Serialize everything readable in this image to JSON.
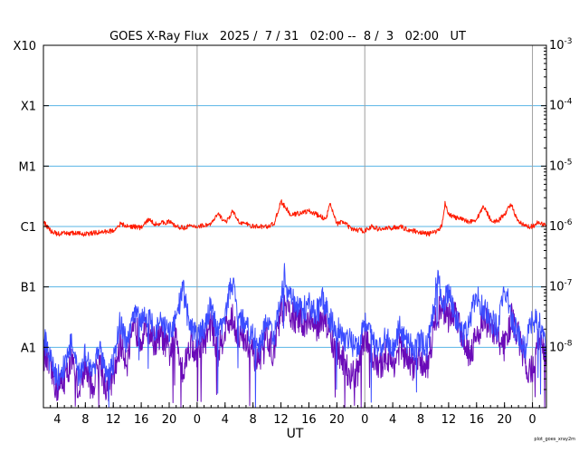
{
  "chart_data": {
    "type": "line",
    "title": "GOES X-Ray Flux   2025 /  7 / 31   02:00 --  8 /  3   02:00   UT",
    "xlabel": "UT",
    "footnote": "plot_goes_xray2m",
    "x_range_hours": [
      0,
      72
    ],
    "x_tick_labels": [
      "4",
      "8",
      "12",
      "16",
      "20",
      "0",
      "4",
      "8",
      "12",
      "16",
      "20",
      "0",
      "4",
      "8",
      "12",
      "16",
      "20",
      "0"
    ],
    "x_tick_hours": [
      2,
      6,
      10,
      14,
      18,
      22,
      26,
      30,
      34,
      38,
      42,
      46,
      50,
      54,
      58,
      62,
      66,
      70
    ],
    "day_boundaries_hours": [
      22,
      46,
      70
    ],
    "y_scale": "log",
    "y_range": [
      1e-09,
      0.001
    ],
    "y_left_labels": [
      {
        "text": "X10",
        "value": 0.001
      },
      {
        "text": "X1",
        "value": 0.0001
      },
      {
        "text": "M1",
        "value": 1e-05
      },
      {
        "text": "C1",
        "value": 1e-06
      },
      {
        "text": "B1",
        "value": 1e-07
      },
      {
        "text": "A1",
        "value": 1e-08
      }
    ],
    "y_right_labels": [
      {
        "base": "10",
        "exp": "-3",
        "value": 0.001
      },
      {
        "base": "10",
        "exp": "-4",
        "value": 0.0001
      },
      {
        "base": "10",
        "exp": "-5",
        "value": 1e-05
      },
      {
        "base": "10",
        "exp": "-6",
        "value": 1e-06
      },
      {
        "base": "10",
        "exp": "-7",
        "value": 1e-07
      },
      {
        "base": "10",
        "exp": "-8",
        "value": 1e-08
      }
    ],
    "gridlines_at": [
      0.0001,
      1e-05,
      1e-06,
      1e-07,
      1e-08
    ],
    "colors": {
      "grid": "#5ab4e6",
      "day_line": "#a0a0a0",
      "long_channel": "#ff1a00",
      "short_channel_a": "#3b4cff",
      "short_channel_b": "#6a0ab8"
    },
    "series": [
      {
        "key": "long",
        "x": [
          0,
          1,
          2,
          4,
          6,
          8,
          10,
          11,
          12,
          13,
          14,
          15,
          16,
          18,
          19,
          20,
          20.5,
          22,
          24,
          25,
          26,
          26.5,
          27,
          28,
          29,
          30,
          32,
          33,
          34,
          35,
          35.5,
          36,
          37,
          38,
          39,
          40,
          40.5,
          41,
          42,
          43,
          44,
          46,
          47,
          48,
          50,
          51,
          52,
          54,
          55,
          56,
          57,
          57.5,
          58,
          59,
          60,
          61,
          62,
          63,
          64,
          65,
          66,
          67,
          67.5,
          68,
          69,
          70,
          71,
          72
        ],
        "y": [
          1.2e-06,
          8.5e-07,
          7.5e-07,
          7.8e-07,
          7.5e-07,
          8e-07,
          8.5e-07,
          1.1e-06,
          1e-06,
          1e-06,
          9.5e-07,
          1.3e-06,
          1.1e-06,
          1.2e-06,
          1e-06,
          9.5e-07,
          1e-06,
          1e-06,
          1.1e-06,
          1.6e-06,
          1.2e-06,
          1.3e-06,
          1.8e-06,
          1.2e-06,
          1.1e-06,
          1e-06,
          1e-06,
          1.1e-06,
          2.6e-06,
          1.8e-06,
          1.5e-06,
          1.6e-06,
          1.7e-06,
          1.8e-06,
          1.6e-06,
          1.4e-06,
          1.3e-06,
          2.6e-06,
          1.1e-06,
          1.2e-06,
          9e-07,
          8.5e-07,
          1e-06,
          9e-07,
          9.5e-07,
          1e-06,
          9e-07,
          8e-07,
          7.5e-07,
          8e-07,
          1e-06,
          2.5e-06,
          1.6e-06,
          1.4e-06,
          1.3e-06,
          1.2e-06,
          1.3e-06,
          2.2e-06,
          1.3e-06,
          1.2e-06,
          1.6e-06,
          2.4e-06,
          1.5e-06,
          1.2e-06,
          1e-06,
          1e-06,
          1.2e-06,
          1e-06
        ]
      },
      {
        "key": "short_a",
        "x": [
          0,
          1,
          2,
          3,
          4,
          5,
          6,
          7,
          8,
          9,
          10,
          10.5,
          11,
          12,
          13,
          14,
          15,
          16,
          17,
          18,
          19,
          20,
          21,
          22,
          23,
          24,
          25,
          26,
          27,
          28,
          29,
          30,
          31,
          32,
          33,
          34,
          34.5,
          35,
          36,
          37,
          38,
          39,
          40,
          41,
          42,
          43,
          44,
          45,
          46,
          47,
          48,
          49,
          50,
          51,
          52,
          53,
          54,
          55,
          56,
          56.5,
          57,
          58,
          59,
          60,
          61,
          62,
          63,
          64,
          65,
          66,
          67,
          68,
          69,
          70,
          71,
          72
        ],
        "y": [
          1.5e-08,
          6e-09,
          3e-09,
          5e-09,
          1.2e-08,
          3e-09,
          8e-09,
          4e-09,
          1e-08,
          3e-09,
          5e-09,
          1.5e-08,
          2.5e-08,
          1e-08,
          3.5e-08,
          3e-08,
          3.5e-08,
          2e-08,
          2.5e-08,
          1.5e-08,
          3e-08,
          9e-08,
          2e-08,
          1.5e-08,
          2e-08,
          5e-08,
          1.5e-08,
          4e-08,
          1.2e-07,
          3e-08,
          2.5e-08,
          1.5e-08,
          1e-08,
          3e-08,
          1.3e-08,
          6e-08,
          1.7e-07,
          8e-08,
          5e-08,
          4e-08,
          5e-08,
          3.5e-08,
          6e-08,
          3e-08,
          2e-08,
          1.5e-08,
          1.2e-08,
          1e-08,
          3e-08,
          1.5e-08,
          8e-09,
          1.5e-08,
          1e-08,
          2e-08,
          1.2e-08,
          1e-08,
          1.2e-08,
          1e-08,
          6e-08,
          2e-07,
          5e-08,
          8e-08,
          3e-08,
          1.5e-08,
          3e-08,
          7e-08,
          4e-08,
          3e-08,
          2e-08,
          1e-07,
          3e-08,
          1.5e-08,
          1e-08,
          3e-08,
          2.5e-08,
          1e-08
        ]
      },
      {
        "key": "short_b",
        "x": [
          0,
          1,
          2,
          3,
          4,
          5,
          6,
          7,
          8,
          9,
          10,
          11,
          12,
          13,
          14,
          15,
          16,
          17,
          18,
          19,
          20,
          21,
          22,
          23,
          24,
          25,
          26,
          27,
          28,
          29,
          30,
          31,
          32,
          33,
          34,
          35,
          36,
          37,
          38,
          39,
          40,
          41,
          42,
          43,
          44,
          45,
          46,
          47,
          48,
          49,
          50,
          51,
          52,
          53,
          54,
          55,
          56,
          57,
          58,
          59,
          60,
          61,
          62,
          63,
          64,
          65,
          66,
          67,
          68,
          69,
          70,
          71,
          72
        ],
        "y": [
          8e-09,
          4e-09,
          2e-09,
          3e-09,
          6e-09,
          2e-09,
          5e-09,
          2e-09,
          6e-09,
          2e-09,
          3e-09,
          1.2e-08,
          6e-09,
          2e-08,
          1.5e-08,
          2e-08,
          1.2e-08,
          1.5e-08,
          8e-09,
          1.5e-08,
          4e-09,
          1.2e-08,
          8e-09,
          1.2e-08,
          2.5e-08,
          8e-09,
          2e-08,
          3e-08,
          1.5e-08,
          1.2e-08,
          8e-09,
          5e-09,
          1.5e-08,
          8e-09,
          4e-08,
          4e-08,
          3e-08,
          2.5e-08,
          3e-08,
          2e-08,
          3.5e-08,
          1.5e-08,
          8e-09,
          6e-09,
          3e-09,
          4e-09,
          1.5e-08,
          8e-09,
          4e-09,
          8e-09,
          5e-09,
          1e-08,
          6e-09,
          5e-09,
          6e-09,
          5e-09,
          2.5e-08,
          5e-08,
          3e-08,
          4e-08,
          1.5e-08,
          8e-09,
          1.5e-08,
          3e-08,
          2e-08,
          1.5e-08,
          1e-08,
          3e-08,
          1.5e-08,
          5e-09,
          4e-09,
          1.5e-08,
          6e-09
        ]
      }
    ]
  }
}
